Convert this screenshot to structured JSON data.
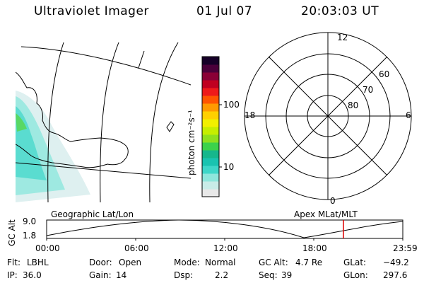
{
  "header": {
    "instrument": "Ultraviolet Imager",
    "date": "01 Jul 07",
    "time": "20:03:03 UT"
  },
  "colorbar": {
    "label": "photon cm⁻²s⁻¹",
    "ticks": [
      "100",
      "10"
    ],
    "colors": [
      "#e8e8e8",
      "#c8ece8",
      "#8ee6dc",
      "#3ed6c8",
      "#19c3b0",
      "#16b78c",
      "#3cd24b",
      "#8fe01e",
      "#c6ee00",
      "#f1f000",
      "#ffd000",
      "#ff9a00",
      "#ff5500",
      "#ee1a1a",
      "#c00020",
      "#8a0036",
      "#4a003a",
      "#160028"
    ]
  },
  "panels": {
    "left_label": "Geographic Lat/Lon",
    "right_label": "Apex MLat/MLT"
  },
  "polar": {
    "hours": {
      "top": "12",
      "left": "18",
      "right": "6",
      "bottom": "0"
    },
    "lat_labels": [
      "60",
      "70",
      "80"
    ]
  },
  "timeline": {
    "ylabel": "GC Alt",
    "yticks": [
      "9.0",
      "1.8"
    ],
    "xticks": [
      "00:00",
      "06:00",
      "12:00",
      "18:00",
      "23:59"
    ],
    "marker_color": "#dd0000"
  },
  "info": {
    "flt_label": "Flt:",
    "flt_value": "LBHL",
    "ip_label": "IP:",
    "ip_value": "36.0",
    "door_label": "Door:",
    "door_value": "Open",
    "gain_label": "Gain:",
    "gain_value": "14",
    "mode_label": "Mode:",
    "mode_value": "Normal",
    "dsp_label": "Dsp:",
    "dsp_value": "2.2",
    "gcalt_label": "GC Alt:",
    "gcalt_value": "4.7 Re",
    "seq_label": "Seq:",
    "seq_value": "39",
    "glat_label": "GLat:",
    "glat_value": "−49.2",
    "glon_label": "GLon:",
    "glon_value": "297.6"
  }
}
